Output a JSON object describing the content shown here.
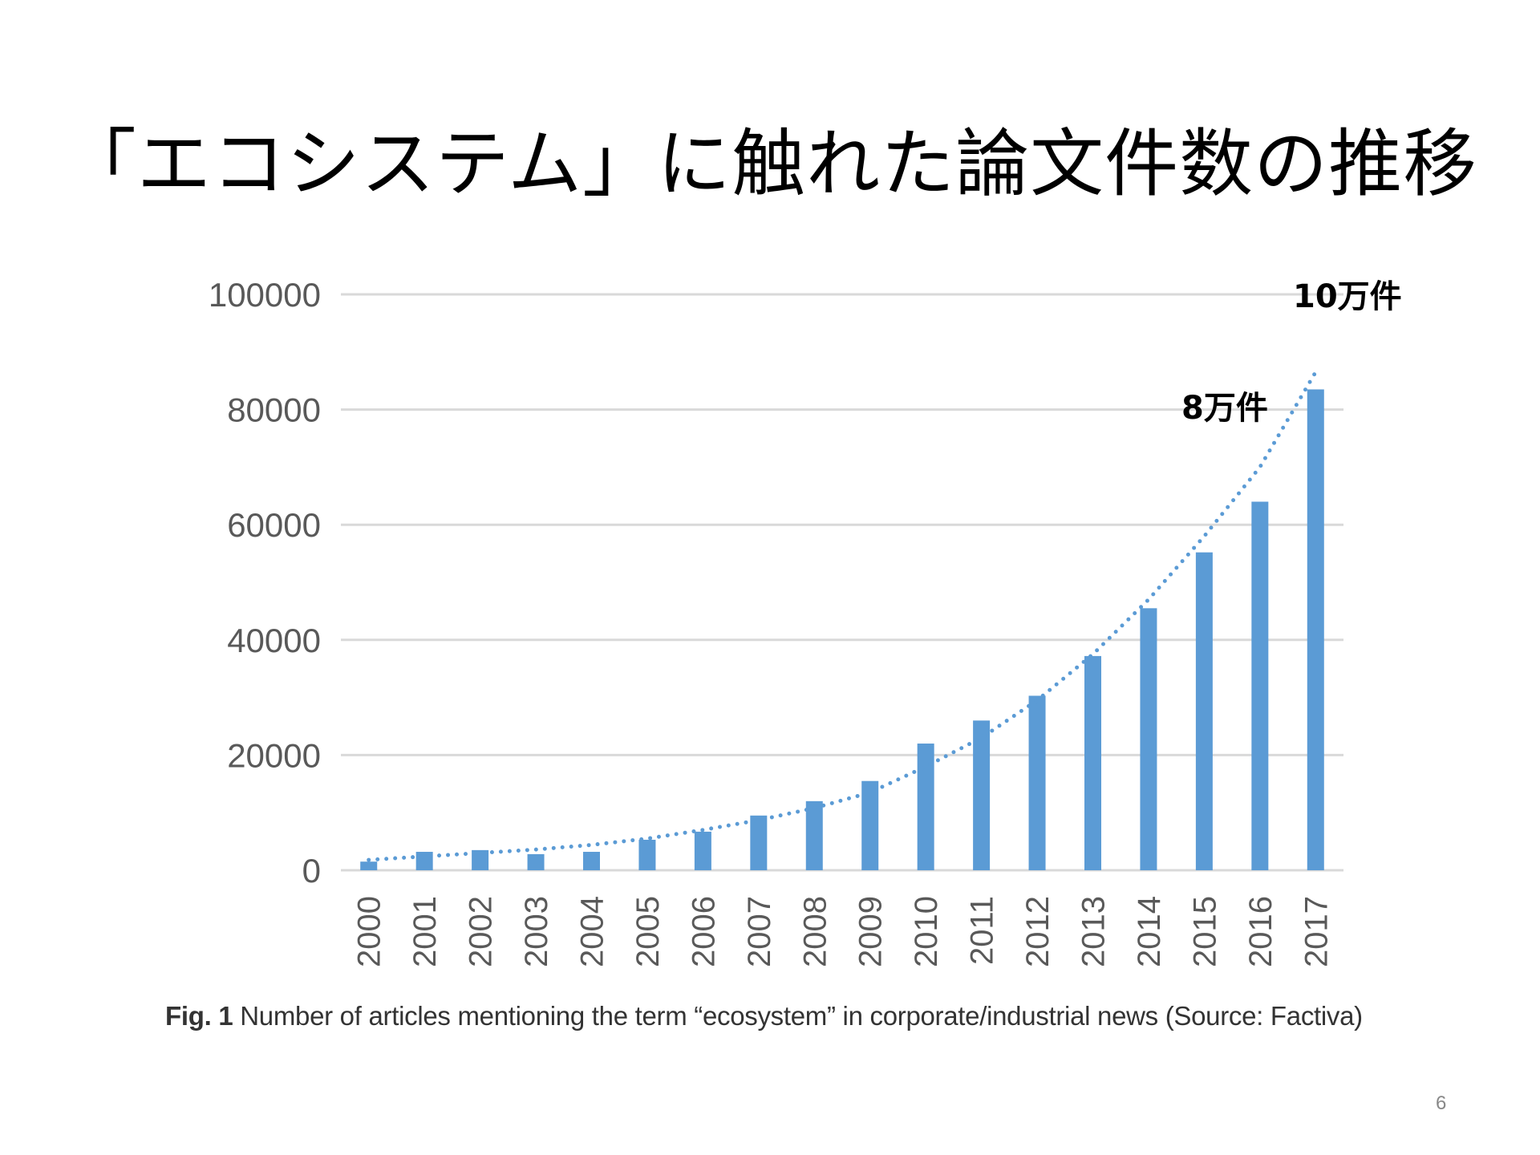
{
  "slide": {
    "title": "「エコシステム」に触れた論文件数の推移",
    "caption_fig": "Fig. 1",
    "caption_text": " Number of articles mentioning the term “ecosystem” in corporate/industrial news (Source: Factiva)",
    "page_number": "6"
  },
  "chart_data": {
    "type": "bar",
    "categories": [
      "2000",
      "2001",
      "2002",
      "2003",
      "2004",
      "2005",
      "2006",
      "2007",
      "2008",
      "2009",
      "2010",
      "2011",
      "2012",
      "2013",
      "2014",
      "2015",
      "2016",
      "2017"
    ],
    "values": [
      1500,
      3200,
      3500,
      2800,
      3200,
      5300,
      6700,
      9500,
      12000,
      15500,
      22000,
      26000,
      30300,
      37200,
      45500,
      55200,
      64000,
      83500
    ],
    "trendline": {
      "style": "dotted",
      "values": [
        1800,
        2400,
        3000,
        3600,
        4400,
        5500,
        7000,
        8700,
        10800,
        13500,
        18000,
        23000,
        29500,
        37500,
        47000,
        58000,
        70000,
        86500
      ]
    },
    "yticks": [
      0,
      20000,
      40000,
      60000,
      80000,
      100000
    ],
    "ylim": [
      0,
      100000
    ],
    "annotations": [
      "10万件",
      "8万件"
    ],
    "colors": {
      "bar": "#5b9bd5",
      "trend": "#5b9bd5",
      "grid": "#d9d9d9",
      "tick_text": "#595959"
    },
    "grid": true
  }
}
